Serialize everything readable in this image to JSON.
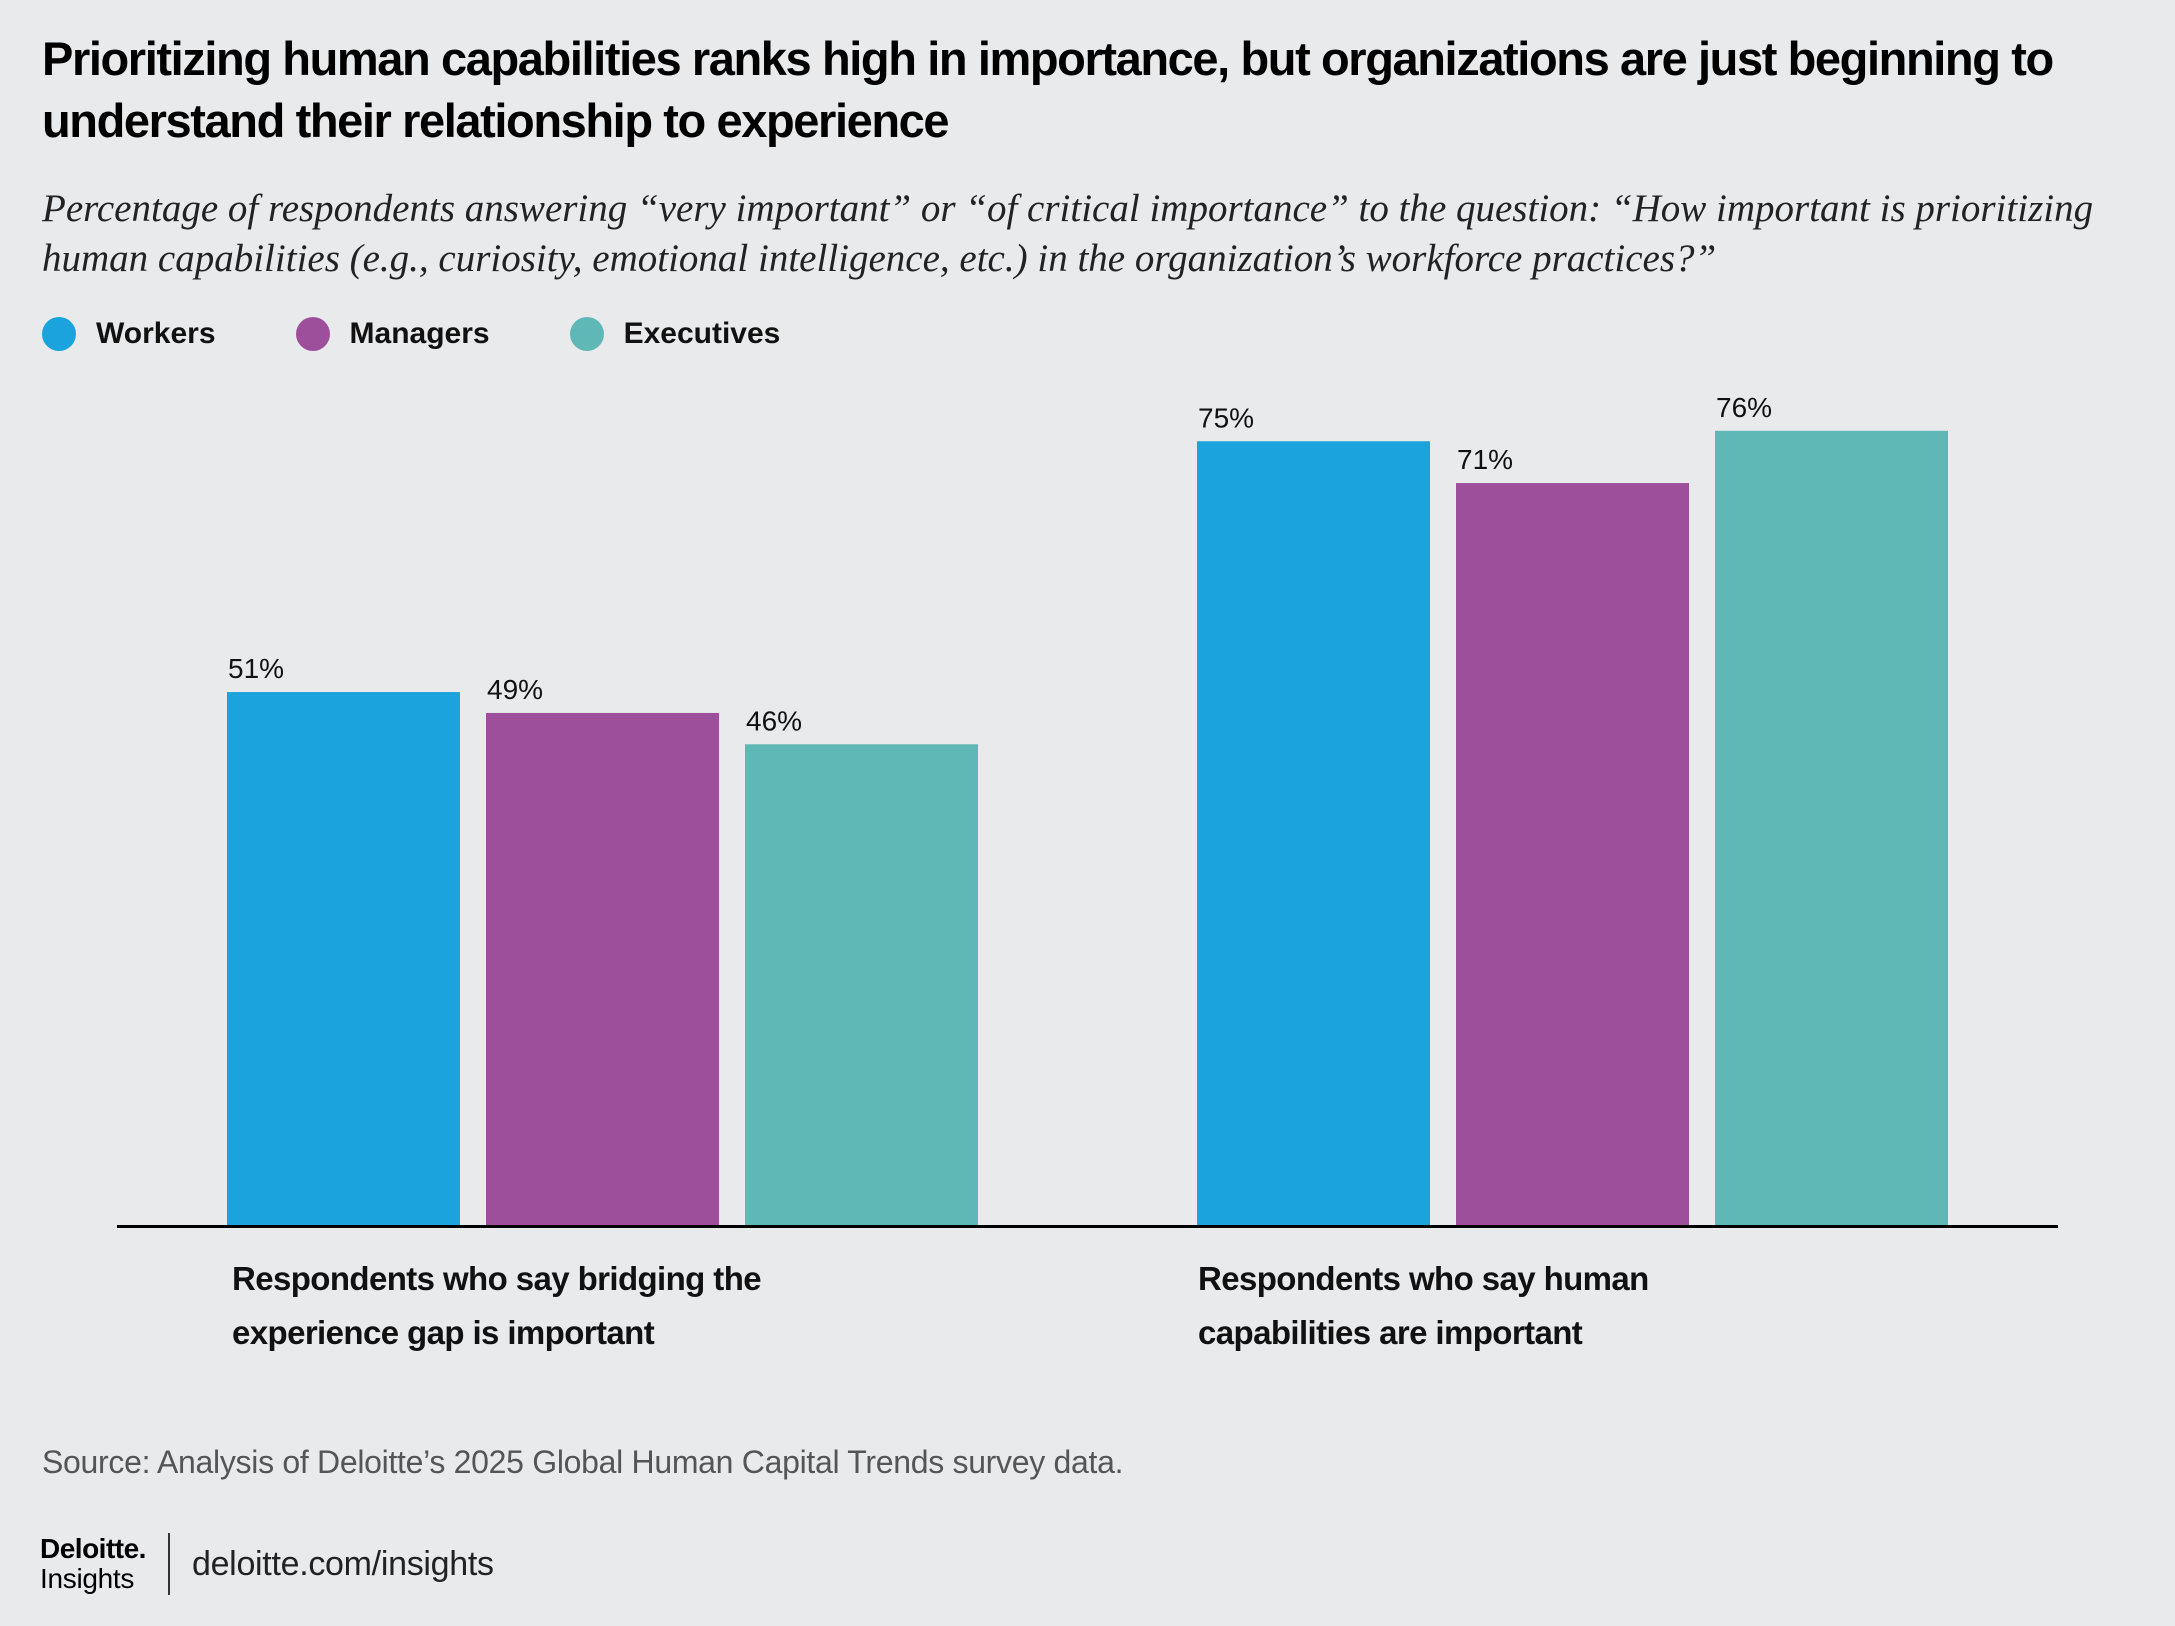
{
  "chart_data": {
    "type": "bar",
    "title": "Prioritizing human capabilities ranks high in importance, but organizations are just beginning to understand their relationship to experience",
    "subtitle": "Percentage of respondents answering “very important” or “of critical importance” to the question: “How important is prioritizing human capabilities (e.g., curiosity, emotional intelligence, etc.) in the organization’s workforce practices?”",
    "categories": [
      "Respondents who say bridging the experience gap is important",
      "Respondents who say human capabilities are important"
    ],
    "series": [
      {
        "name": "Workers",
        "color": "#1aa3dc",
        "values": [
          51,
          75
        ]
      },
      {
        "name": "Managers",
        "color": "#9e4f9c",
        "values": [
          49,
          71
        ]
      },
      {
        "name": "Executives",
        "color": "#5fb7b6",
        "values": [
          46,
          76
        ]
      }
    ],
    "value_suffix": "%",
    "ylim": [
      0,
      100
    ],
    "grid": false,
    "legend_position": "top-left",
    "source": "Source: Analysis of Deloitte’s 2025 Global Human Capital Trends survey data."
  },
  "footer": {
    "logo_main": "Deloitte.",
    "logo_sub": "Insights",
    "link": "deloitte.com/insights"
  }
}
